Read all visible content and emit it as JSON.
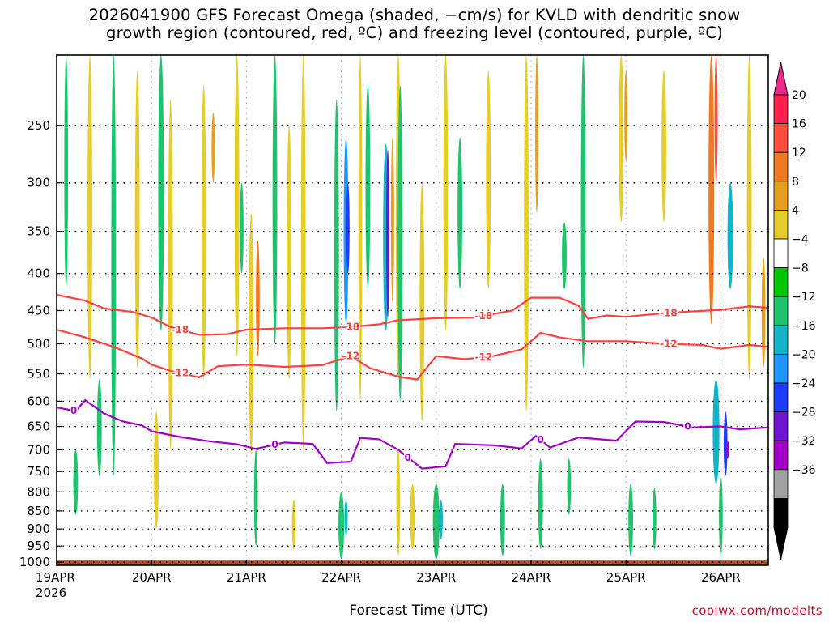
{
  "title": {
    "line1": "2026041900 GFS Forecast Omega (shaded, −cm/s) for KVLD with dendritic snow",
    "line2": "growth region (contoured, red, ºC) and freezing level (contoured, purple, ºC)"
  },
  "credit": "coolwx.com/modelts",
  "colors": {
    "dgz_contour": "#ff4040",
    "freezing_contour": "#a000c8",
    "ground": "#a0522d"
  },
  "chart_data": {
    "type": "heatmap",
    "title": "2026041900 GFS Forecast Omega (shaded, −cm/s) for KVLD",
    "xlabel": "Forecast Time (UTC)",
    "ylabel": "",
    "x_axis": {
      "unit": "days since 19APR 00Z",
      "range": [
        0,
        7.5
      ],
      "ticks": [
        {
          "label": "19APR",
          "sublabel": "2026",
          "value": 0
        },
        {
          "label": "20APR",
          "value": 1
        },
        {
          "label": "21APR",
          "value": 2
        },
        {
          "label": "22APR",
          "value": 3
        },
        {
          "label": "23APR",
          "value": 4
        },
        {
          "label": "24APR",
          "value": 5
        },
        {
          "label": "25APR",
          "value": 6
        },
        {
          "label": "26APR",
          "value": 7
        }
      ]
    },
    "y_axis": {
      "unit": "hPa",
      "range": [
        1010,
        200
      ],
      "ticks": [
        250,
        300,
        350,
        400,
        450,
        500,
        550,
        600,
        650,
        700,
        750,
        800,
        850,
        900,
        950,
        1000
      ]
    },
    "colorbar": {
      "labels": [
        "20",
        "16",
        "12",
        "8",
        "4",
        "−4",
        "−8",
        "−12",
        "−16",
        "−20",
        "−24",
        "−28",
        "−32",
        "−36"
      ],
      "colors": [
        "#ff1f4e",
        "#ff4e3d",
        "#f0781e",
        "#e6a020",
        "#e6cd2a",
        "#ffffff",
        "#00c800",
        "#1ec36e",
        "#14b4c8",
        "#1e96ff",
        "#1e3cff",
        "#6e14d2",
        "#a000c8",
        "#a0a0a0",
        "#000000"
      ],
      "top_arrow_color": "#f0288c",
      "bottom_arrow_color": "#000000"
    },
    "contours": [
      {
        "name": "dgz -18",
        "label": "-18",
        "color": "#ff4040",
        "points": [
          [
            0,
            428
          ],
          [
            0.3,
            436
          ],
          [
            0.5,
            447
          ],
          [
            0.8,
            452
          ],
          [
            1.0,
            460
          ],
          [
            1.2,
            474
          ],
          [
            1.5,
            486
          ],
          [
            1.8,
            485
          ],
          [
            2.0,
            478
          ],
          [
            2.4,
            476
          ],
          [
            2.8,
            476
          ],
          [
            3.1,
            474
          ],
          [
            3.4,
            470
          ],
          [
            3.6,
            464
          ],
          [
            4.0,
            461
          ],
          [
            4.4,
            460
          ],
          [
            4.8,
            450
          ],
          [
            5.0,
            432
          ],
          [
            5.3,
            432
          ],
          [
            5.5,
            443
          ],
          [
            5.6,
            462
          ],
          [
            5.8,
            457
          ],
          [
            6.0,
            459
          ],
          [
            6.3,
            455
          ],
          [
            6.6,
            452
          ],
          [
            7.0,
            449
          ],
          [
            7.3,
            444
          ],
          [
            7.5,
            446
          ]
        ]
      },
      {
        "name": "dgz -12",
        "label": "-12",
        "color": "#ff4040",
        "points": [
          [
            0,
            478
          ],
          [
            0.3,
            490
          ],
          [
            0.6,
            505
          ],
          [
            0.9,
            524
          ],
          [
            1.0,
            534
          ],
          [
            1.2,
            545
          ],
          [
            1.5,
            556
          ],
          [
            1.7,
            537
          ],
          [
            2.0,
            534
          ],
          [
            2.4,
            538
          ],
          [
            2.8,
            535
          ],
          [
            3.1,
            520
          ],
          [
            3.3,
            540
          ],
          [
            3.6,
            555
          ],
          [
            3.8,
            560
          ],
          [
            4.0,
            520
          ],
          [
            4.3,
            525
          ],
          [
            4.6,
            520
          ],
          [
            4.9,
            509
          ],
          [
            5.1,
            483
          ],
          [
            5.3,
            490
          ],
          [
            5.6,
            496
          ],
          [
            6.0,
            496
          ],
          [
            6.4,
            500
          ],
          [
            6.8,
            502
          ],
          [
            7.0,
            508
          ],
          [
            7.3,
            502
          ],
          [
            7.5,
            505
          ]
        ]
      },
      {
        "name": "freezing 0",
        "label": "0",
        "color": "#a000c8",
        "points": [
          [
            0,
            612
          ],
          [
            0.2,
            619
          ],
          [
            0.3,
            598
          ],
          [
            0.5,
            624
          ],
          [
            0.7,
            640
          ],
          [
            0.9,
            648
          ],
          [
            1.0,
            660
          ],
          [
            1.3,
            672
          ],
          [
            1.6,
            681
          ],
          [
            1.9,
            688
          ],
          [
            2.1,
            698
          ],
          [
            2.4,
            684
          ],
          [
            2.7,
            687
          ],
          [
            2.85,
            730
          ],
          [
            3.1,
            727
          ],
          [
            3.2,
            674
          ],
          [
            3.4,
            677
          ],
          [
            3.6,
            700
          ],
          [
            3.85,
            743
          ],
          [
            4.1,
            738
          ],
          [
            4.2,
            687
          ],
          [
            4.6,
            690
          ],
          [
            4.9,
            697
          ],
          [
            5.05,
            670
          ],
          [
            5.2,
            695
          ],
          [
            5.5,
            673
          ],
          [
            5.9,
            680
          ],
          [
            6.1,
            640
          ],
          [
            6.4,
            641
          ],
          [
            6.7,
            652
          ],
          [
            7.0,
            650
          ],
          [
            7.2,
            656
          ],
          [
            7.5,
            652
          ]
        ]
      }
    ],
    "shaded_regions_sample": [
      {
        "x": [
          2.1,
          2.15
        ],
        "p": [
          330,
          530
        ],
        "value": 12
      },
      {
        "x": [
          3.02,
          3.1
        ],
        "p": [
          260,
          470
        ],
        "value": -20
      },
      {
        "x": [
          3.45,
          3.53
        ],
        "p": [
          270,
          480
        ],
        "value": -24
      },
      {
        "x": [
          7.0,
          7.1
        ],
        "p": [
          560,
          760
        ],
        "value": -24
      },
      {
        "x": [
          6.92,
          7.02
        ],
        "p": [
          180,
          440
        ],
        "value": 12
      }
    ]
  }
}
